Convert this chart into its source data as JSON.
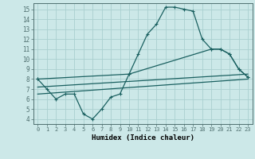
{
  "xlabel": "Humidex (Indice chaleur)",
  "xlim": [
    -0.5,
    23.5
  ],
  "ylim": [
    3.5,
    15.6
  ],
  "xticks": [
    0,
    1,
    2,
    3,
    4,
    5,
    6,
    7,
    8,
    9,
    10,
    11,
    12,
    13,
    14,
    15,
    16,
    17,
    18,
    19,
    20,
    21,
    22,
    23
  ],
  "yticks": [
    4,
    5,
    6,
    7,
    8,
    9,
    10,
    11,
    12,
    13,
    14,
    15
  ],
  "background_color": "#cce8e8",
  "grid_color": "#aad0d0",
  "line_color": "#1a6060",
  "line1_x": [
    0,
    1,
    2,
    3,
    4,
    5,
    6,
    7,
    8,
    9,
    10,
    11,
    12,
    13,
    14,
    15,
    16,
    17,
    18,
    19,
    20,
    21,
    22,
    23
  ],
  "line1_y": [
    8.0,
    7.0,
    6.0,
    6.5,
    6.5,
    4.5,
    4.0,
    5.0,
    6.2,
    6.5,
    8.5,
    10.5,
    12.5,
    13.5,
    15.2,
    15.2,
    15.0,
    14.8,
    12.0,
    11.0,
    11.0,
    10.5,
    9.0,
    8.2
  ],
  "line2_x": [
    0,
    10,
    19,
    20,
    21,
    22,
    23
  ],
  "line2_y": [
    8.0,
    8.5,
    11.0,
    11.0,
    10.5,
    9.0,
    8.2
  ],
  "line3_x": [
    0,
    23
  ],
  "line3_y": [
    7.2,
    8.5
  ],
  "line4_x": [
    0,
    23
  ],
  "line4_y": [
    6.5,
    8.0
  ],
  "line_width": 0.9,
  "marker_size": 3.5
}
